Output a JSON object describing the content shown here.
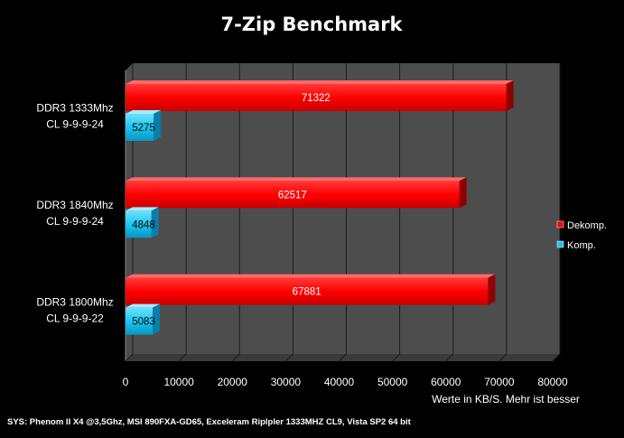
{
  "chart_data": {
    "type": "bar",
    "orientation": "horizontal",
    "title": "7-Zip Benchmark",
    "xlabel": "Werte in KB/S. Mehr ist besser",
    "xlim": [
      0,
      80000
    ],
    "xticks": [
      0,
      10000,
      20000,
      30000,
      40000,
      50000,
      60000,
      70000,
      80000
    ],
    "categories": [
      [
        "DDR3 1333Mhz",
        "CL 9-9-9-24"
      ],
      [
        "DDR3 1840Mhz",
        "CL 9-9-9-24"
      ],
      [
        "DDR3 1800Mhz",
        "CL 9-9-9-22"
      ]
    ],
    "series": [
      {
        "name": "Dekomp.",
        "color": "#ff0000",
        "values": [
          71322,
          62517,
          67881
        ]
      },
      {
        "name": "Komp.",
        "color": "#19c8f0",
        "values": [
          5275,
          4848,
          5083
        ]
      }
    ],
    "grid": "vertical",
    "legend": "right",
    "footnote": "SYS: Phenom II X4 @3,5Ghz, MSI 890FXA-GD65, Exceleram Riplpler 1333MHZ CL9, Vista SP2 64 bit"
  }
}
